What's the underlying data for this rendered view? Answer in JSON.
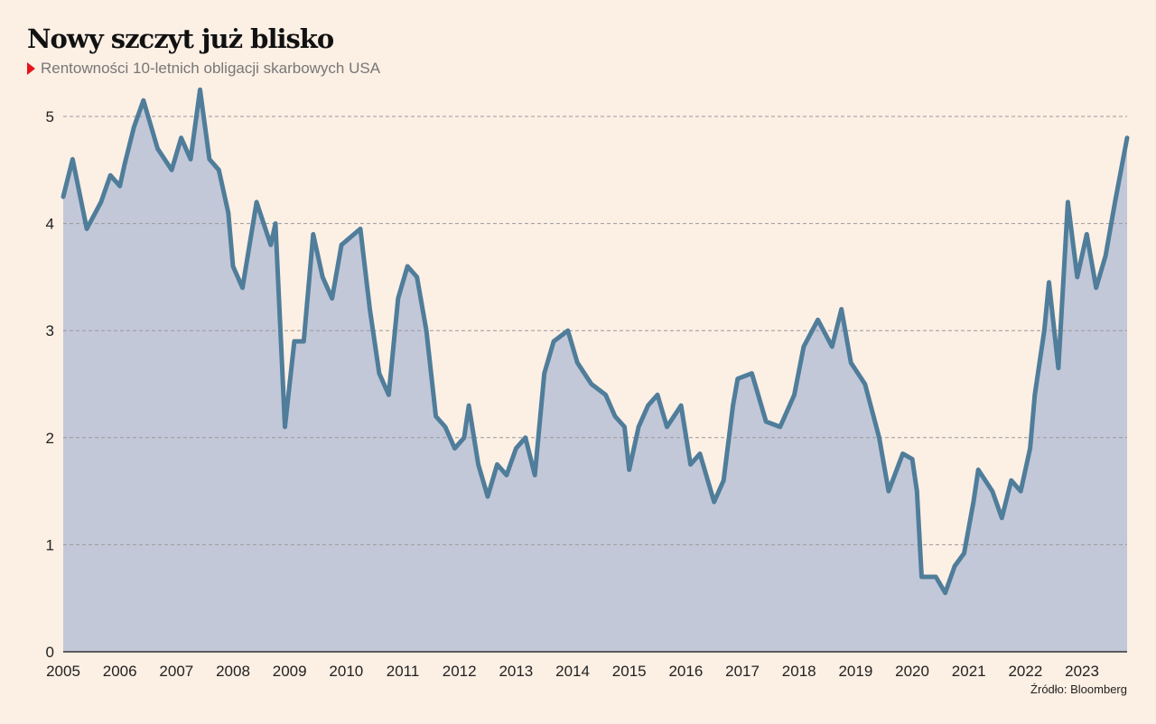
{
  "chart_data": {
    "type": "area",
    "title": "Nowy szczyt już blisko",
    "subtitle": "Rentowności 10-letnich obligacji skarbowych USA",
    "source": "Źródło: Bloomberg",
    "xlabel": "",
    "ylabel": "",
    "ylim": [
      0,
      5.3
    ],
    "yticks": [
      0,
      1,
      2,
      3,
      4,
      5
    ],
    "xticks": [
      "2005",
      "2006",
      "2007",
      "2008",
      "2009",
      "2010",
      "2011",
      "2012",
      "2013",
      "2014",
      "2015",
      "2016",
      "2017",
      "2018",
      "2019",
      "2020",
      "2021",
      "2022",
      "2023"
    ],
    "xlim": [
      "2005-01",
      "2023-10"
    ],
    "grid": "horizontal dashed",
    "colors": {
      "line": "#4f7d9a",
      "fill": "#c2c8d8",
      "background": "#fcefe4",
      "marker": "#e3151a"
    },
    "points": [
      [
        "2005-01",
        4.25
      ],
      [
        "2005-03",
        4.6
      ],
      [
        "2005-06",
        3.95
      ],
      [
        "2005-09",
        4.2
      ],
      [
        "2005-11",
        4.45
      ],
      [
        "2006-01",
        4.35
      ],
      [
        "2006-02",
        4.55
      ],
      [
        "2006-04",
        4.9
      ],
      [
        "2006-06",
        5.15
      ],
      [
        "2006-09",
        4.7
      ],
      [
        "2006-12",
        4.5
      ],
      [
        "2007-02",
        4.8
      ],
      [
        "2007-04",
        4.6
      ],
      [
        "2007-06",
        5.25
      ],
      [
        "2007-08",
        4.6
      ],
      [
        "2007-10",
        4.5
      ],
      [
        "2007-12",
        4.1
      ],
      [
        "2008-01",
        3.6
      ],
      [
        "2008-03",
        3.4
      ],
      [
        "2008-06",
        4.2
      ],
      [
        "2008-09",
        3.8
      ],
      [
        "2008-10",
        4.0
      ],
      [
        "2008-12",
        2.1
      ],
      [
        "2009-02",
        2.9
      ],
      [
        "2009-04",
        2.9
      ],
      [
        "2009-06",
        3.9
      ],
      [
        "2009-08",
        3.5
      ],
      [
        "2009-10",
        3.3
      ],
      [
        "2009-12",
        3.8
      ],
      [
        "2010-04",
        3.95
      ],
      [
        "2010-06",
        3.2
      ],
      [
        "2010-08",
        2.6
      ],
      [
        "2010-10",
        2.4
      ],
      [
        "2010-12",
        3.3
      ],
      [
        "2011-02",
        3.6
      ],
      [
        "2011-04",
        3.5
      ],
      [
        "2011-06",
        3.0
      ],
      [
        "2011-08",
        2.2
      ],
      [
        "2011-10",
        2.1
      ],
      [
        "2011-12",
        1.9
      ],
      [
        "2012-02",
        2.0
      ],
      [
        "2012-03",
        2.3
      ],
      [
        "2012-05",
        1.75
      ],
      [
        "2012-07",
        1.45
      ],
      [
        "2012-09",
        1.75
      ],
      [
        "2012-11",
        1.65
      ],
      [
        "2013-01",
        1.9
      ],
      [
        "2013-03",
        2.0
      ],
      [
        "2013-05",
        1.65
      ],
      [
        "2013-07",
        2.6
      ],
      [
        "2013-09",
        2.9
      ],
      [
        "2013-12",
        3.0
      ],
      [
        "2014-02",
        2.7
      ],
      [
        "2014-05",
        2.5
      ],
      [
        "2014-08",
        2.4
      ],
      [
        "2014-10",
        2.2
      ],
      [
        "2014-12",
        2.1
      ],
      [
        "2015-01",
        1.7
      ],
      [
        "2015-03",
        2.1
      ],
      [
        "2015-05",
        2.3
      ],
      [
        "2015-07",
        2.4
      ],
      [
        "2015-09",
        2.1
      ],
      [
        "2015-12",
        2.3
      ],
      [
        "2016-02",
        1.75
      ],
      [
        "2016-04",
        1.85
      ],
      [
        "2016-07",
        1.4
      ],
      [
        "2016-09",
        1.6
      ],
      [
        "2016-11",
        2.3
      ],
      [
        "2016-12",
        2.55
      ],
      [
        "2017-03",
        2.6
      ],
      [
        "2017-06",
        2.15
      ],
      [
        "2017-09",
        2.1
      ],
      [
        "2017-12",
        2.4
      ],
      [
        "2018-02",
        2.85
      ],
      [
        "2018-05",
        3.1
      ],
      [
        "2018-08",
        2.85
      ],
      [
        "2018-10",
        3.2
      ],
      [
        "2018-12",
        2.7
      ],
      [
        "2019-03",
        2.5
      ],
      [
        "2019-06",
        2.0
      ],
      [
        "2019-08",
        1.5
      ],
      [
        "2019-11",
        1.85
      ],
      [
        "2020-01",
        1.8
      ],
      [
        "2020-02",
        1.5
      ],
      [
        "2020-03",
        0.7
      ],
      [
        "2020-06",
        0.7
      ],
      [
        "2020-08",
        0.55
      ],
      [
        "2020-10",
        0.8
      ],
      [
        "2020-12",
        0.92
      ],
      [
        "2021-02",
        1.4
      ],
      [
        "2021-03",
        1.7
      ],
      [
        "2021-06",
        1.5
      ],
      [
        "2021-08",
        1.25
      ],
      [
        "2021-10",
        1.6
      ],
      [
        "2021-12",
        1.5
      ],
      [
        "2022-02",
        1.9
      ],
      [
        "2022-03",
        2.4
      ],
      [
        "2022-05",
        3.0
      ],
      [
        "2022-06",
        3.45
      ],
      [
        "2022-08",
        2.65
      ],
      [
        "2022-10",
        4.2
      ],
      [
        "2022-12",
        3.5
      ],
      [
        "2023-02",
        3.9
      ],
      [
        "2023-04",
        3.4
      ],
      [
        "2023-06",
        3.7
      ],
      [
        "2023-08",
        4.2
      ],
      [
        "2023-10",
        4.8
      ]
    ]
  }
}
